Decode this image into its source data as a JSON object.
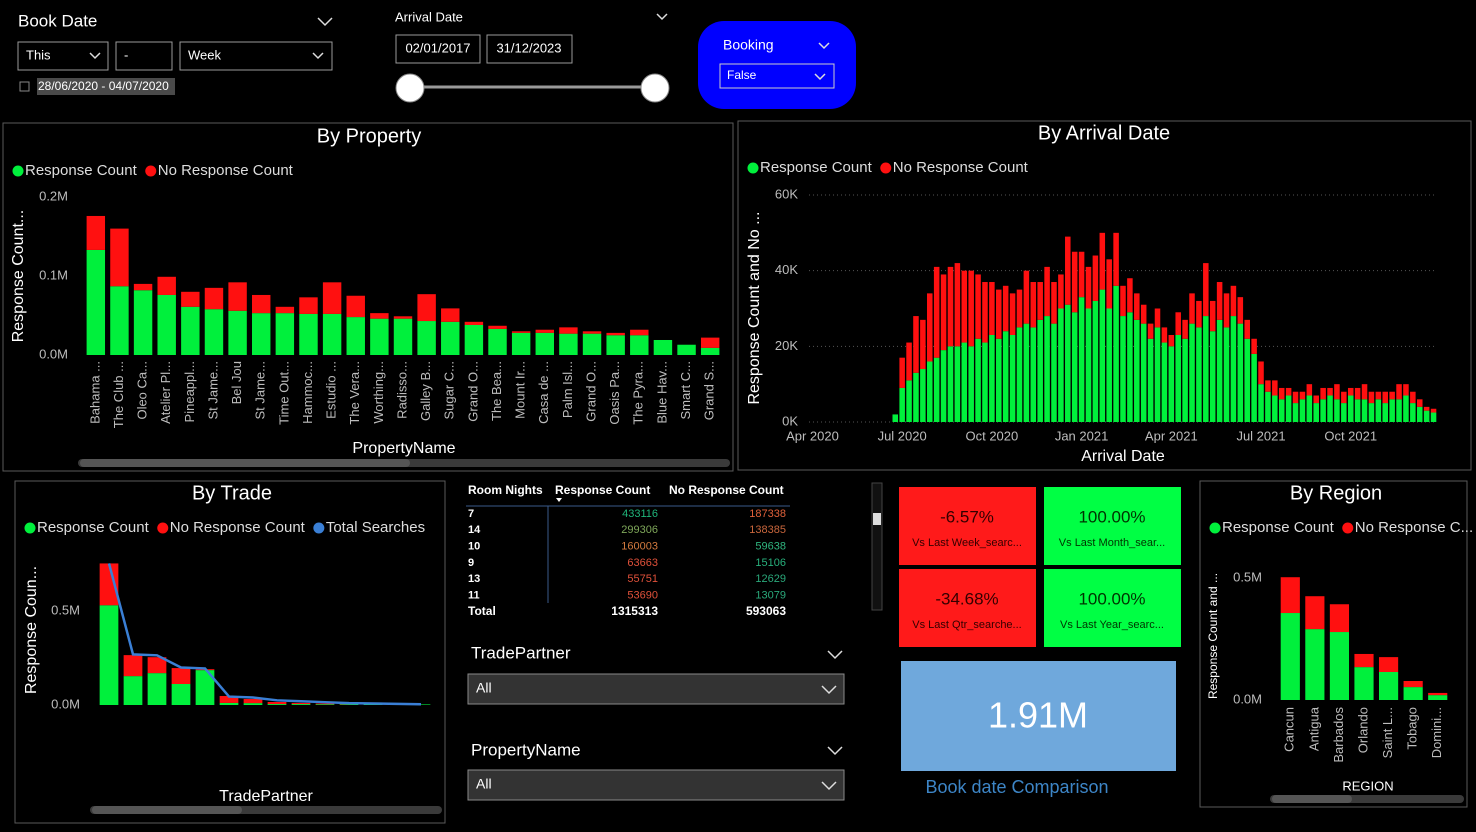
{
  "filters": {
    "book_date": {
      "title": "Book Date",
      "relative": "This",
      "count": "-",
      "unit": "Week",
      "range": "28/06/2020 - 04/07/2020"
    },
    "arrival_date": {
      "title": "Arrival Date",
      "start": "02/01/2017",
      "end": "31/12/2023"
    },
    "booking": {
      "title": "Booking",
      "value": "False"
    },
    "trade_partner": {
      "title": "TradePartner",
      "value": "All"
    },
    "property_name": {
      "title": "PropertyName",
      "value": "All"
    }
  },
  "chart_data": [
    {
      "type": "bar",
      "stacked": true,
      "title": "By Property",
      "y_label": "Response Count...",
      "x_label": "PropertyName",
      "categories": [
        "Bahama ...",
        "The Club ...",
        "Oleo Ca...",
        "Atelier Pl...",
        "Pineappl...",
        "St Jame...",
        "Bel Jou",
        "St Jame...",
        "Time Out...",
        "Hammoc...",
        "Estudio ...",
        "The Vera...",
        "Worthing...",
        "Radisso...",
        "Galley B...",
        "Sugar C...",
        "Grand O...",
        "The Bea...",
        "Mount Ir...",
        "Casa de ...",
        "Palm Isl...",
        "Grand O...",
        "Oasis Pa...",
        "The Pyra...",
        "Blue Hav...",
        "Smart C...",
        "Grand S..."
      ],
      "series": [
        {
          "name": "Response Count",
          "color": "#00f03c",
          "values": [
            133000,
            87000,
            82000,
            76000,
            61000,
            58000,
            56000,
            53000,
            53000,
            52000,
            52000,
            48000,
            46000,
            46000,
            43000,
            42000,
            38000,
            33000,
            28000,
            28000,
            27000,
            27000,
            25000,
            25000,
            19000,
            13000,
            9000
          ]
        },
        {
          "name": "No Response Count",
          "color": "#ff1010",
          "values": [
            43000,
            73000,
            8000,
            23000,
            19000,
            27000,
            36000,
            23000,
            8000,
            21000,
            40000,
            27000,
            7000,
            3000,
            34000,
            17000,
            4000,
            4000,
            2000,
            4000,
            8000,
            3000,
            3000,
            7000,
            0,
            0,
            13000
          ]
        }
      ],
      "ylim": [
        0,
        200000
      ],
      "yticks": [
        {
          "value": 0,
          "label": "0.0M"
        },
        {
          "value": 100000,
          "label": "0.1M"
        },
        {
          "value": 200000,
          "label": "0.2M"
        }
      ],
      "grid": false
    },
    {
      "type": "bar",
      "stacked": true,
      "title": "By Arrival Date",
      "y_label": "Response Count and No ...",
      "x_label": "Arrival Date",
      "categories": [
        "Apr 2020",
        null,
        null,
        null,
        null,
        null,
        null,
        null,
        null,
        null,
        null,
        null,
        null,
        "Jul 2020",
        null,
        null,
        null,
        null,
        null,
        null,
        null,
        null,
        null,
        null,
        null,
        null,
        "Oct 2020",
        null,
        null,
        null,
        null,
        null,
        null,
        null,
        null,
        null,
        null,
        null,
        null,
        "Jan 2021",
        null,
        null,
        null,
        null,
        null,
        null,
        null,
        null,
        null,
        null,
        null,
        null,
        "Apr 2021",
        null,
        null,
        null,
        null,
        null,
        null,
        null,
        null,
        null,
        null,
        null,
        null,
        "Jul 2021",
        null,
        null,
        null,
        null,
        null,
        null,
        null,
        null,
        null,
        null,
        null,
        null,
        "Oct 2021",
        null,
        null,
        null,
        null,
        null,
        null,
        null,
        null,
        null,
        null,
        null,
        null
      ],
      "series": [
        {
          "name": "Response Count",
          "color": "#00f03c",
          "values": [
            null,
            null,
            null,
            null,
            null,
            null,
            null,
            null,
            null,
            null,
            null,
            null,
            2000,
            9000,
            11000,
            13000,
            14000,
            16000,
            17000,
            19000,
            20000,
            20000,
            21000,
            20000,
            22000,
            21000,
            23000,
            22000,
            24000,
            23000,
            25000,
            26000,
            25000,
            27000,
            28000,
            26000,
            30000,
            31000,
            29000,
            33000,
            30000,
            32000,
            35000,
            30000,
            36000,
            28000,
            29000,
            27000,
            26000,
            22000,
            25000,
            21000,
            20000,
            23000,
            22000,
            26000,
            25000,
            28000,
            24000,
            27000,
            25000,
            28000,
            26000,
            22000,
            18000,
            10000,
            8000,
            7000,
            6000,
            7000,
            5000,
            6000,
            7000,
            5000,
            6000,
            7000,
            6000,
            5000,
            7000,
            6000,
            6000,
            5000,
            6000,
            5000,
            6000,
            6000,
            7000,
            5000,
            4000,
            3000,
            2500
          ]
        },
        {
          "name": "No Response Count",
          "color": "#ff1010",
          "values": [
            null,
            null,
            null,
            null,
            null,
            null,
            null,
            null,
            null,
            null,
            null,
            null,
            0,
            8000,
            10000,
            15000,
            13000,
            18000,
            24000,
            20000,
            21000,
            22000,
            19000,
            20000,
            17000,
            16000,
            14000,
            13000,
            12000,
            11000,
            10000,
            14000,
            12000,
            10000,
            13000,
            11000,
            9000,
            18000,
            16000,
            12000,
            11000,
            12000,
            15000,
            13000,
            14000,
            8000,
            9000,
            7000,
            5000,
            4000,
            5000,
            4000,
            3000,
            6000,
            5000,
            8000,
            7000,
            14000,
            8000,
            10000,
            9000,
            8000,
            7000,
            5000,
            4000,
            6000,
            3000,
            4000,
            3000,
            2000,
            3000,
            2000,
            3000,
            2000,
            3000,
            2000,
            4000,
            3000,
            2000,
            3000,
            4000,
            3000,
            2000,
            3000,
            2000,
            4000,
            3000,
            3000,
            2000,
            1000,
            1000
          ]
        }
      ],
      "ylim": [
        0,
        60000
      ],
      "yticks": [
        {
          "value": 0,
          "label": "0K"
        },
        {
          "value": 20000,
          "label": "20K"
        },
        {
          "value": 40000,
          "label": "40K"
        },
        {
          "value": 60000,
          "label": "60K"
        }
      ],
      "grid": true
    },
    {
      "type": "bar",
      "stacked": true,
      "title": "By Trade",
      "y_label": "Response Coun...",
      "x_label": "TradePartner",
      "categories": [
        null,
        null,
        null,
        null,
        null,
        null,
        null,
        null,
        null,
        null,
        null,
        null,
        null,
        null
      ],
      "series": [
        {
          "name": "Response Count",
          "color": "#00f03c",
          "values": [
            532000,
            154000,
            170000,
            112000,
            186000,
            11000,
            10000,
            5000,
            5000,
            4000,
            3000,
            3000,
            2000,
            3000
          ]
        },
        {
          "name": "No Response Count",
          "color": "#ff1010",
          "values": [
            223000,
            112000,
            85000,
            85000,
            5000,
            37000,
            22000,
            11000,
            6000,
            4000,
            2000,
            1000,
            1000,
            0
          ]
        },
        {
          "name": "Total Searches",
          "color": "#3a7fd5",
          "type": "line",
          "values": [
            755000,
            270000,
            265000,
            200000,
            195000,
            45000,
            40000,
            25000,
            20000,
            15000,
            10000,
            8000,
            6000,
            4000
          ]
        }
      ],
      "ylim": [
        0,
        800000
      ],
      "yticks": [
        {
          "value": 0,
          "label": "0.0M"
        },
        {
          "value": 500000,
          "label": "0.5M"
        }
      ],
      "grid": false
    },
    {
      "type": "bar",
      "stacked": true,
      "title": "By Region",
      "y_label": "Response Count and ...",
      "x_label": "REGION",
      "categories": [
        "Cancun",
        "Antigua",
        "Barbados",
        "Orlando",
        "Saint L...",
        "Tobago",
        "Domini..."
      ],
      "series": [
        {
          "name": "Response Count",
          "color": "#00f03c",
          "values": [
            357000,
            291000,
            279000,
            135000,
            115000,
            53000,
            20000
          ]
        },
        {
          "name": "No Response C...",
          "color": "#ff1010",
          "values": [
            147000,
            135000,
            114000,
            54000,
            61000,
            25000,
            9000
          ]
        }
      ],
      "ylim": [
        0,
        550000
      ],
      "yticks": [
        {
          "value": 0,
          "label": "0.0M"
        },
        {
          "value": 500000,
          "label": "0.5M"
        }
      ],
      "grid": false
    }
  ],
  "table": {
    "columns": [
      "Room Nights",
      "Response Count",
      "No Response Count"
    ],
    "rows": [
      [
        7,
        433116,
        187338
      ],
      [
        14,
        299306,
        138385
      ],
      [
        10,
        160003,
        59638
      ],
      [
        9,
        63663,
        15106
      ],
      [
        13,
        55751,
        12629
      ],
      [
        11,
        53690,
        13079
      ]
    ],
    "total": [
      "Total",
      1315313,
      593063
    ]
  },
  "kpis": [
    {
      "value": "-6.57%",
      "label": "Vs Last Week_searc..."
    },
    {
      "value": "100.00%",
      "label": "Vs Last Month_sear..."
    },
    {
      "value": "-34.68%",
      "label": "Vs Last Qtr_searche..."
    },
    {
      "value": "100.00%",
      "label": "Vs Last Year_searc..."
    }
  ],
  "card": {
    "value": "1.91M",
    "label": "Book date Comparison"
  }
}
